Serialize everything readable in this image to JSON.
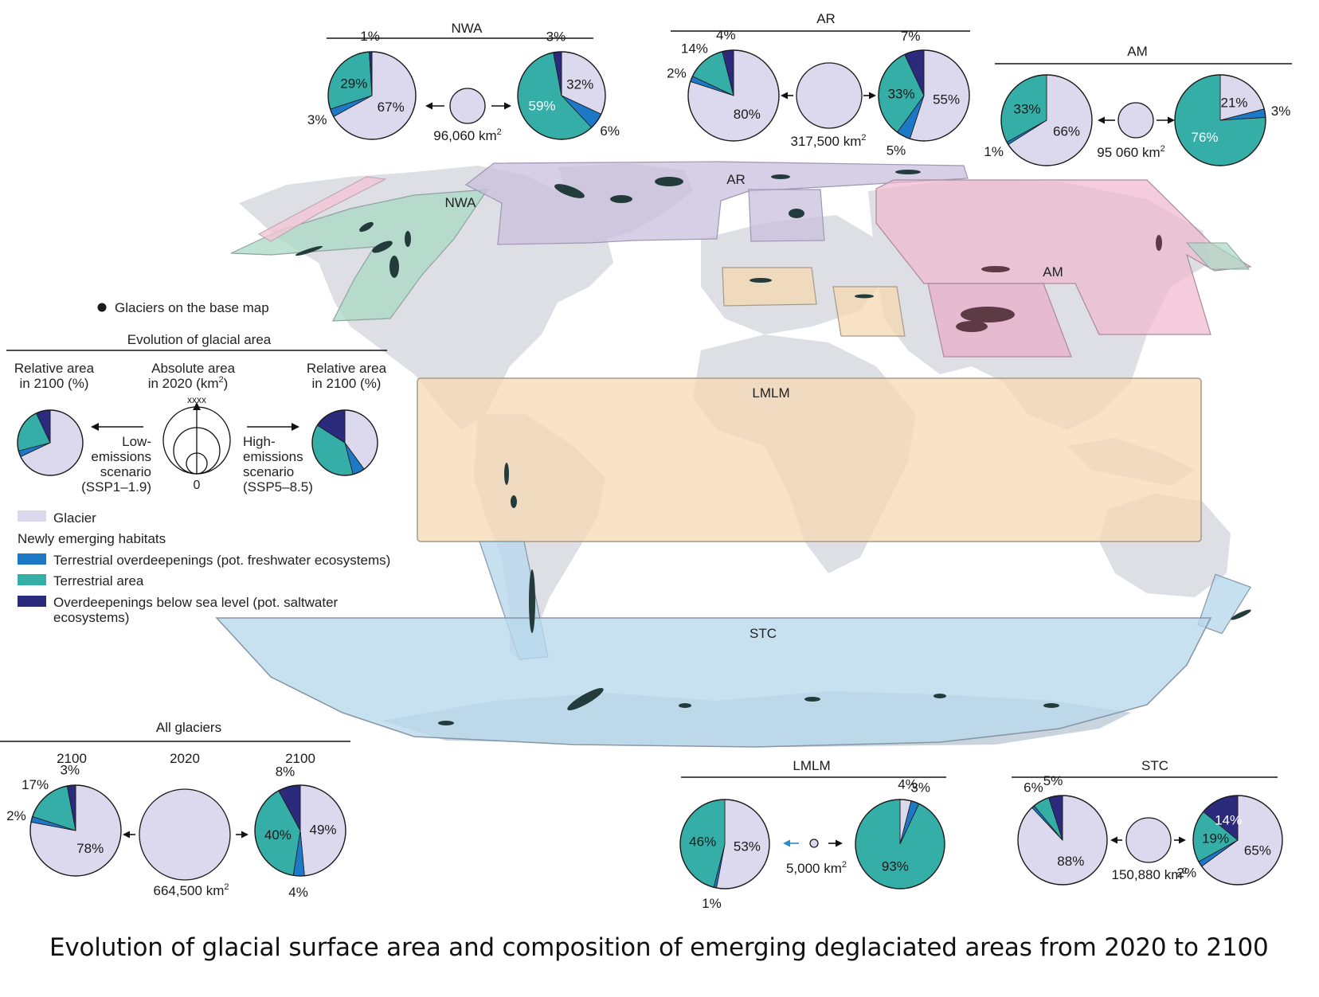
{
  "colors": {
    "glacier": "#dcd9ee",
    "terrestrial_overdeepening": "#1d78c6",
    "terrestrial_area": "#35aea8",
    "saltwater_overdeepening": "#2b2a7c",
    "land": "#dedfe4",
    "region_nwa": "#a8d8c4",
    "region_ar": "#c9bfdc",
    "region_am": "#f0b7cf",
    "region_lmlm": "#f6d8b2",
    "region_stc": "#b9d8ec",
    "glacier_dots": "#243b3b"
  },
  "map": {
    "base_glaciers_label": "Glaciers on the base map",
    "region_labels": {
      "nwa": "NWA",
      "ar": "AR",
      "am": "AM",
      "lmlm": "LMLM",
      "stc": "STC"
    }
  },
  "legend": {
    "title": "Evolution of glacial area",
    "relative_left": [
      "Relative area",
      "in 2100 (%)"
    ],
    "absolute": [
      "Absolute area",
      "in 2020 (km",
      "2",
      ")"
    ],
    "relative_right": [
      "Relative area",
      "in 2100 (%)"
    ],
    "xxxx": "xxxx",
    "zero": "0",
    "low_scenario": [
      "Low-",
      "emissions",
      "scenario",
      "(SSP1–1.9)"
    ],
    "high_scenario": [
      "High-",
      "emissions",
      "scenario",
      "(SSP5–8.5)"
    ],
    "example_low": [
      68,
      3,
      22,
      7
    ],
    "example_high": [
      40,
      6,
      38,
      16
    ],
    "items": {
      "glacier": "Glacier",
      "newly_emerging": "Newly emerging habitats",
      "terrestrial_overdeepenings": "Terrestrial overdeepenings (pot. freshwater ecosystems)",
      "terrestrial_area": "Terrestrial area",
      "saltwater": [
        "Overdeepenings below sea level (pot. saltwater",
        "ecosystems)"
      ]
    }
  },
  "regions": [
    {
      "id": "nwa",
      "title": "NWA",
      "area": "96,060 km",
      "area_sup": "2",
      "low": {
        "glacier": 67,
        "freshwater": 3,
        "terrestrial": 29,
        "saltwater": 1,
        "labels": {
          "glacier": "67%",
          "freshwater": "3%",
          "terrestrial": "29%",
          "saltwater": "1%"
        }
      },
      "high": {
        "glacier": 32,
        "freshwater": 6,
        "terrestrial": 59,
        "saltwater": 3,
        "labels": {
          "glacier": "32%",
          "freshwater": "6%",
          "terrestrial": "59%",
          "saltwater": "3%"
        }
      }
    },
    {
      "id": "ar",
      "title": "AR",
      "area": "317,500 km",
      "area_sup": "2",
      "low": {
        "glacier": 80,
        "freshwater": 2,
        "terrestrial": 14,
        "saltwater": 4,
        "labels": {
          "glacier": "80%",
          "freshwater": "2%",
          "terrestrial": "14%",
          "saltwater": "4%"
        }
      },
      "high": {
        "glacier": 55,
        "freshwater": 5,
        "terrestrial": 33,
        "saltwater": 7,
        "labels": {
          "glacier": "55%",
          "freshwater": "5%",
          "terrestrial": "33%",
          "saltwater": "7%"
        }
      }
    },
    {
      "id": "am",
      "title": "AM",
      "area": "95 060 km",
      "area_sup": "2",
      "low": {
        "glacier": 66,
        "freshwater": 1,
        "terrestrial": 33,
        "saltwater": 0,
        "labels": {
          "glacier": "66%",
          "freshwater": "1%",
          "terrestrial": "33%"
        }
      },
      "high": {
        "glacier": 21,
        "freshwater": 3,
        "terrestrial": 76,
        "saltwater": 0,
        "labels": {
          "glacier": "21%",
          "freshwater": "3%",
          "terrestrial": "76%"
        }
      }
    },
    {
      "id": "all",
      "title": "All glaciers",
      "area": "664,500 km",
      "area_sup": "2",
      "year_low": "2100",
      "year_mid": "2020",
      "year_high": "2100",
      "low": {
        "glacier": 78,
        "freshwater": 2,
        "terrestrial": 17,
        "saltwater": 3,
        "labels": {
          "glacier": "78%",
          "freshwater": "2%",
          "terrestrial": "17%",
          "saltwater": "3%"
        }
      },
      "high": {
        "glacier": 49,
        "freshwater": 4,
        "terrestrial": 40,
        "saltwater": 8,
        "labels": {
          "glacier": "49%",
          "freshwater": "4%",
          "terrestrial": "40%",
          "saltwater": "8%"
        }
      }
    },
    {
      "id": "lmlm",
      "title": "LMLM",
      "area": "5,000 km",
      "area_sup": "2",
      "low": {
        "glacier": 53,
        "freshwater": 1,
        "terrestrial": 46,
        "saltwater": 0,
        "labels": {
          "glacier": "53%",
          "freshwater": "1%",
          "terrestrial": "46%"
        }
      },
      "high": {
        "glacier": 4,
        "freshwater": 3,
        "terrestrial": 93,
        "saltwater": 0,
        "labels": {
          "glacier": "4%",
          "freshwater": "3%",
          "terrestrial": "93%"
        }
      }
    },
    {
      "id": "stc",
      "title": "STC",
      "area": "150,880 km",
      "area_sup": "2",
      "low": {
        "glacier": 88,
        "freshwater": 1,
        "terrestrial": 6,
        "saltwater": 5,
        "labels": {
          "glacier": "88%",
          "terrestrial": "6%",
          "saltwater": "5%"
        }
      },
      "high": {
        "glacier": 65,
        "freshwater": 2,
        "terrestrial": 19,
        "saltwater": 14,
        "labels": {
          "glacier": "65%",
          "freshwater": "2%",
          "terrestrial": "19%",
          "saltwater": "14%"
        }
      }
    }
  ],
  "caption": "Evolution of glacial surface area and composition of emerging deglaciated areas from 2020 to 2100"
}
